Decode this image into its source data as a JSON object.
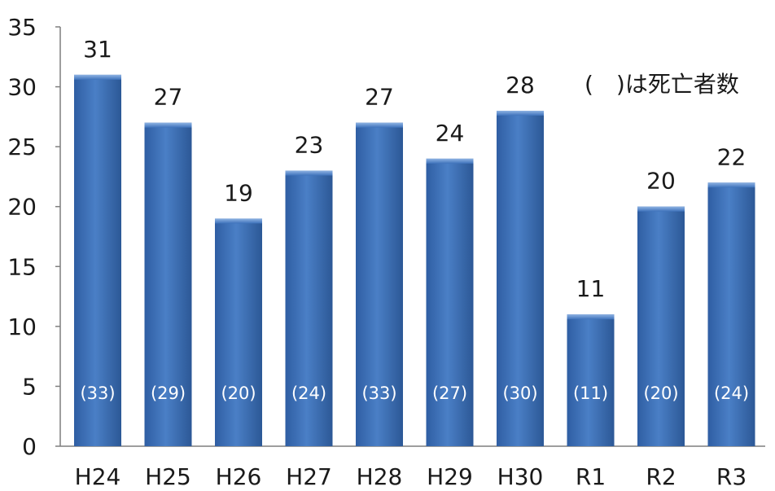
{
  "chart_data": {
    "type": "bar",
    "title": "",
    "xlabel": "",
    "ylabel": "",
    "categories": [
      "H24",
      "H25",
      "H26",
      "H27",
      "H28",
      "H29",
      "H30",
      "R1",
      "R2",
      "R3"
    ],
    "values": [
      31,
      27,
      19,
      23,
      27,
      24,
      28,
      11,
      20,
      22
    ],
    "inner_labels": [
      "(33)",
      "(29)",
      "(20)",
      "(24)",
      "(33)",
      "(27)",
      "(30)",
      "(11)",
      "(20)",
      "(24)"
    ],
    "note": "(　)は死亡者数",
    "ylim": [
      0,
      35
    ],
    "yticks": [
      "0",
      "5",
      "10",
      "15",
      "20",
      "25",
      "30",
      "35"
    ],
    "grid": false,
    "bar_color": "#3a6fb9"
  }
}
